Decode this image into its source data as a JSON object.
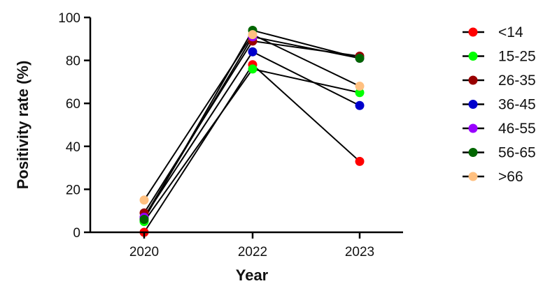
{
  "chart_data": {
    "type": "line",
    "title": "",
    "xlabel": "Year",
    "ylabel": "Positivity rate (%)",
    "categories": [
      "2020",
      "2022",
      "2023"
    ],
    "ylim": [
      0,
      100
    ],
    "yticks": [
      "0",
      "20",
      "40",
      "60",
      "80",
      "100"
    ],
    "grid": false,
    "legend_position": "right",
    "line_color": "#000000",
    "series": [
      {
        "name": " <14",
        "color": "#ff0000",
        "values": [
          0,
          78,
          33
        ]
      },
      {
        "name": "15-25",
        "color": "#00ff00",
        "values": [
          5,
          76,
          65
        ]
      },
      {
        "name": "26-35",
        "color": "#990000",
        "values": [
          9,
          89,
          82
        ]
      },
      {
        "name": "36-45",
        "color": "#0000cc",
        "values": [
          7,
          84,
          59
        ]
      },
      {
        "name": "46-55",
        "color": "#9900ff",
        "values": [
          7,
          91,
          81
        ]
      },
      {
        "name": "56-65",
        "color": "#006600",
        "values": [
          6,
          94,
          81
        ]
      },
      {
        "name": ">66",
        "color": "#ffc080",
        "values": [
          15,
          92,
          68
        ]
      }
    ]
  }
}
